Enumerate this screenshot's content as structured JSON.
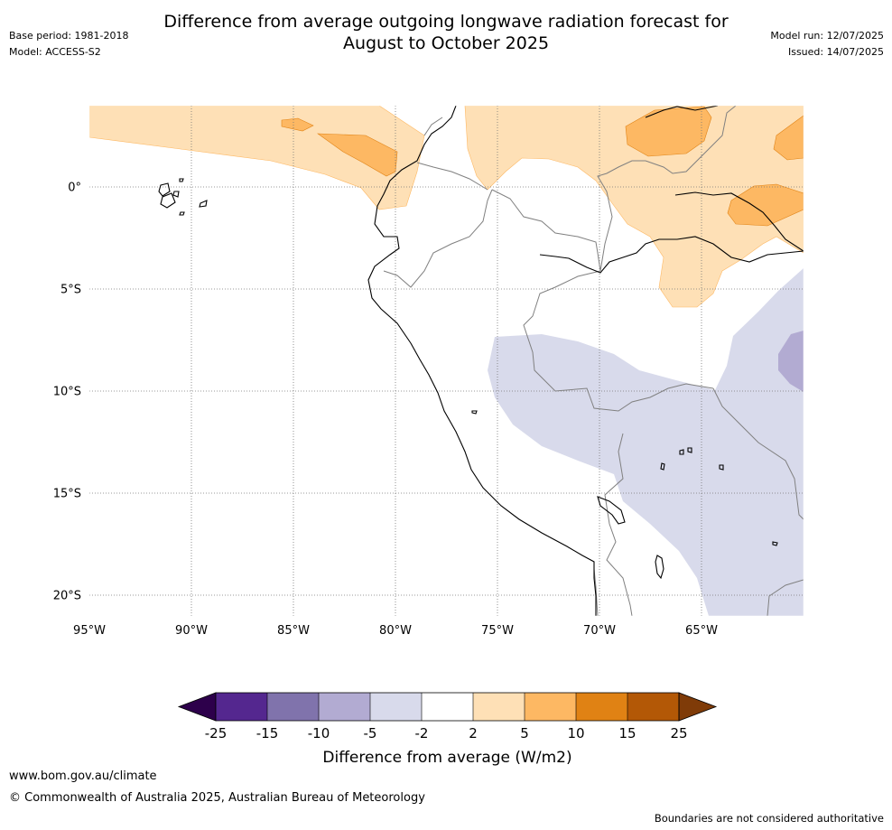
{
  "title_line1": "Difference from average outgoing longwave radiation forecast for",
  "title_line2": "August to October 2025",
  "base_period": "Base period: 1981-2018",
  "model": "Model: ACCESS-S2",
  "model_run": "Model run: 12/07/2025",
  "issued": "Issued: 14/07/2025",
  "map": {
    "lon_range": [
      -95,
      -60
    ],
    "lat_range": [
      -21,
      4
    ],
    "lon_ticks": [
      {
        "value": -95,
        "label": "95°W"
      },
      {
        "value": -90,
        "label": "90°W"
      },
      {
        "value": -85,
        "label": "85°W"
      },
      {
        "value": -80,
        "label": "80°W"
      },
      {
        "value": -75,
        "label": "75°W"
      },
      {
        "value": -70,
        "label": "70°W"
      },
      {
        "value": -65,
        "label": "65°W"
      }
    ],
    "lat_ticks": [
      {
        "value": 0,
        "label": "0°"
      },
      {
        "value": -5,
        "label": "5°S"
      },
      {
        "value": -10,
        "label": "10°S"
      },
      {
        "value": -15,
        "label": "15°S"
      },
      {
        "value": -20,
        "label": "20°S"
      }
    ]
  },
  "colorbar": {
    "label": "Difference from average (W/m2)",
    "ticks": [
      "-25",
      "-15",
      "-10",
      "-5",
      "-2",
      "2",
      "5",
      "10",
      "15",
      "25"
    ],
    "colors": [
      "#54278f",
      "#8073ac",
      "#b2abd2",
      "#d8daeb",
      "#ffffff",
      "#fee0b6",
      "#fdb863",
      "#e08214",
      "#b35806"
    ],
    "under_color": "#2d004b",
    "over_color": "#7f3b08"
  },
  "footer": {
    "website": "www.bom.gov.au/climate",
    "copyright": "© Commonwealth of Australia 2025, Australian Bureau of Meteorology",
    "note": "Boundaries are not considered authoritative"
  }
}
